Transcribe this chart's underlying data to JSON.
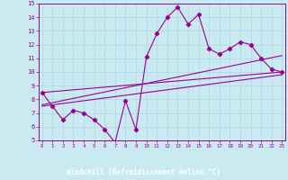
{
  "xlabel": "Windchill (Refroidissement éolien,°C)",
  "bg_color": "#c8eaf0",
  "line_color": "#990099",
  "grid_color": "#b0d8e0",
  "axis_bg": "#7a3080",
  "xmin": 0,
  "xmax": 23,
  "ymin": 5,
  "ymax": 15,
  "xticks": [
    0,
    1,
    2,
    3,
    4,
    5,
    6,
    7,
    8,
    9,
    10,
    11,
    12,
    13,
    14,
    15,
    16,
    17,
    18,
    19,
    20,
    21,
    22,
    23
  ],
  "yticks": [
    5,
    6,
    7,
    8,
    9,
    10,
    11,
    12,
    13,
    14,
    15
  ],
  "series1": [
    8.5,
    7.5,
    6.5,
    7.2,
    7.0,
    6.5,
    5.8,
    4.85,
    7.9,
    5.8,
    11.1,
    12.8,
    14.0,
    14.75,
    13.5,
    14.2,
    11.7,
    11.3,
    11.7,
    12.2,
    12.0,
    11.0,
    10.2,
    10.0
  ],
  "trend1_x": [
    0,
    23
  ],
  "trend1_y": [
    8.5,
    10.0
  ],
  "trend2_x": [
    0,
    23
  ],
  "trend2_y": [
    7.5,
    9.8
  ],
  "trend3_x": [
    0,
    23
  ],
  "trend3_y": [
    7.6,
    11.2
  ]
}
